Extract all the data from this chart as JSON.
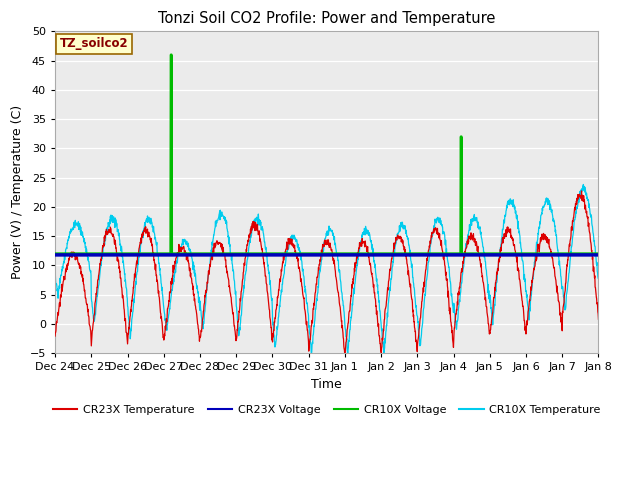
{
  "title": "Tonzi Soil CO2 Profile: Power and Temperature",
  "xlabel": "Time",
  "ylabel": "Power (V) / Temperature (C)",
  "ylim": [
    -5,
    50
  ],
  "yticks": [
    -5,
    0,
    5,
    10,
    15,
    20,
    25,
    30,
    35,
    40,
    45,
    50
  ],
  "fig_bg_color": "#ffffff",
  "plot_bg_color": "#ebebeb",
  "annotation_label": "TZ_soilco2",
  "annotation_bg": "#ffffcc",
  "annotation_border": "#996600",
  "colors": {
    "cr23x_temp": "#dd0000",
    "cr23x_voltage": "#0000bb",
    "cr10x_voltage": "#00bb00",
    "cr10x_temp": "#00ccee"
  },
  "legend_labels": [
    "CR23X Temperature",
    "CR23X Voltage",
    "CR10X Voltage",
    "CR10X Temperature"
  ],
  "cr23x_voltage_value": 11.8,
  "cr10x_voltage_value": 12.0,
  "num_days": 15,
  "spike1_day": 3.2,
  "spike1_value": 46,
  "spike2_day": 11.2,
  "spike2_value": 32,
  "tick_labels": [
    "Dec 24",
    "Dec 25",
    "Dec 26",
    "Dec 27",
    "Dec 28",
    "Dec 29",
    "Dec 30",
    "Dec 31",
    "Jan 1",
    "Jan 2",
    "Jan 3",
    "Jan 4",
    "Jan 5",
    "Jan 6",
    "Jan 7",
    "Jan 8"
  ]
}
